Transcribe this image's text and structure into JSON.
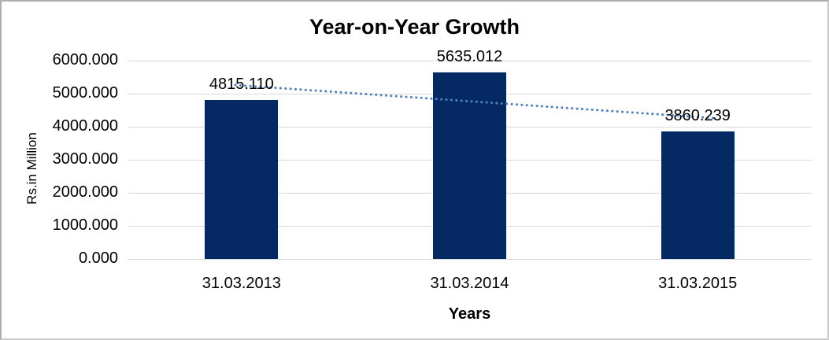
{
  "chart_data": {
    "type": "bar",
    "title": "Year-on-Year Growth",
    "xlabel": "Years",
    "ylabel": "Rs.in Million",
    "categories": [
      "31.03.2013",
      "31.03.2014",
      "31.03.2015"
    ],
    "values": [
      4815.11,
      5635.012,
      3860.239
    ],
    "data_labels": [
      "4815.110",
      "5635.012",
      "3860.239"
    ],
    "ytick_values": [
      0,
      1000,
      2000,
      3000,
      4000,
      5000,
      6000
    ],
    "ytick_labels": [
      "0.000",
      "1000.000",
      "2000.000",
      "3000.000",
      "4000.000",
      "5000.000",
      "6000.000"
    ],
    "ylim": [
      0,
      6000
    ],
    "grid": "horizontal",
    "legend_position": "none",
    "trendline": {
      "type": "linear",
      "style": "dotted",
      "fitted_values": [
        5247.56,
        4770.12,
        4292.68
      ],
      "color": "#4f81bd"
    },
    "colors": {
      "bar": "#052a63",
      "gridline": "#d9d9d9",
      "text": "#000000",
      "background": "#ffffff",
      "border": "#aeaeae"
    }
  }
}
